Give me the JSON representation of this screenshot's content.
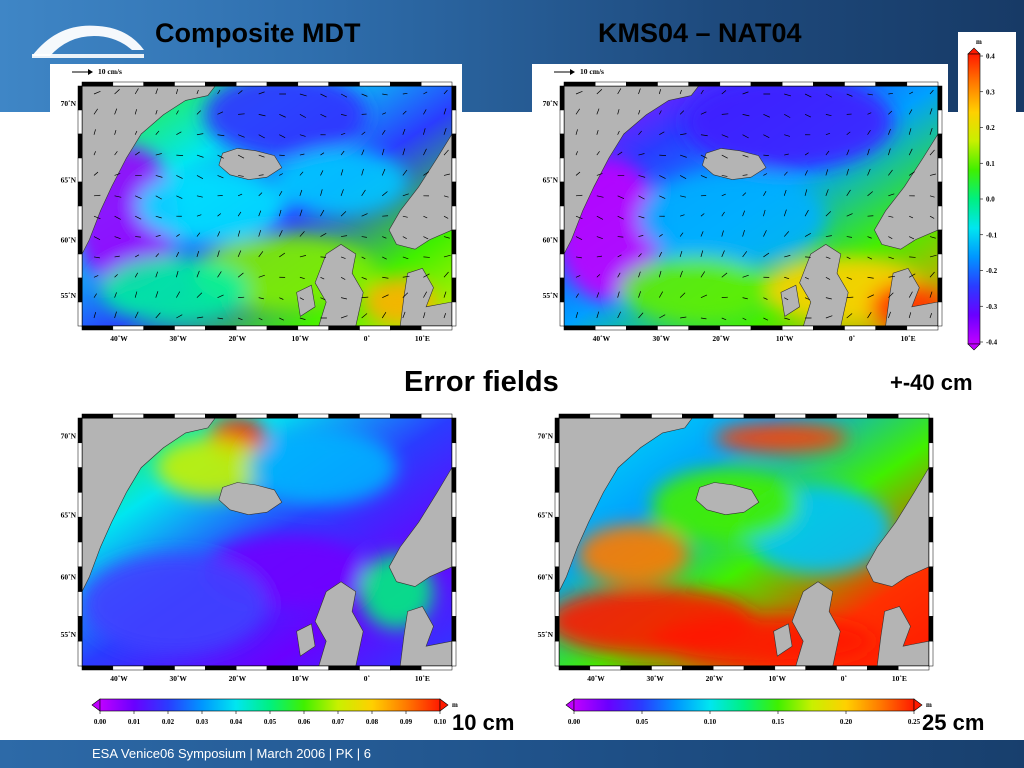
{
  "titles": {
    "left": "Composite MDT",
    "right": "KMS04 – NAT04",
    "middle": "Error fields"
  },
  "captions": {
    "range_top": "+-40 cm",
    "range_bottom_left": "10 cm",
    "range_bottom_right": "25 cm"
  },
  "footer": {
    "text": "ESA Venice06 Symposium | March 2006 | PK | 6"
  },
  "maps": {
    "scale_label": "10 cm/s",
    "lat_labels": [
      "70˚N",
      "65˚N",
      "60˚N",
      "55˚N"
    ],
    "lon_labels": [
      "40˚W",
      "30˚W",
      "20˚W",
      "10˚W",
      "0˚",
      "10˚E"
    ]
  },
  "colorbars": {
    "vertical": {
      "unit": "m",
      "ticks": [
        "0.4",
        "0.3",
        "0.2",
        "0.1",
        "0.0",
        "-0.1",
        "-0.2",
        "-0.3",
        "-0.4"
      ]
    },
    "bottom_left": {
      "unit": "m",
      "ticks": [
        "0.00",
        "0.01",
        "0.02",
        "0.03",
        "0.04",
        "0.05",
        "0.06",
        "0.07",
        "0.08",
        "0.09",
        "0.10"
      ]
    },
    "bottom_right": {
      "unit": "m",
      "ticks": [
        "0.00",
        "0.05",
        "0.10",
        "0.15",
        "0.20",
        "0.25"
      ]
    }
  },
  "colors": {
    "land": "#b4b4b4",
    "header_blue": "#2f6fae",
    "footer_blue": "#1e4f86"
  }
}
